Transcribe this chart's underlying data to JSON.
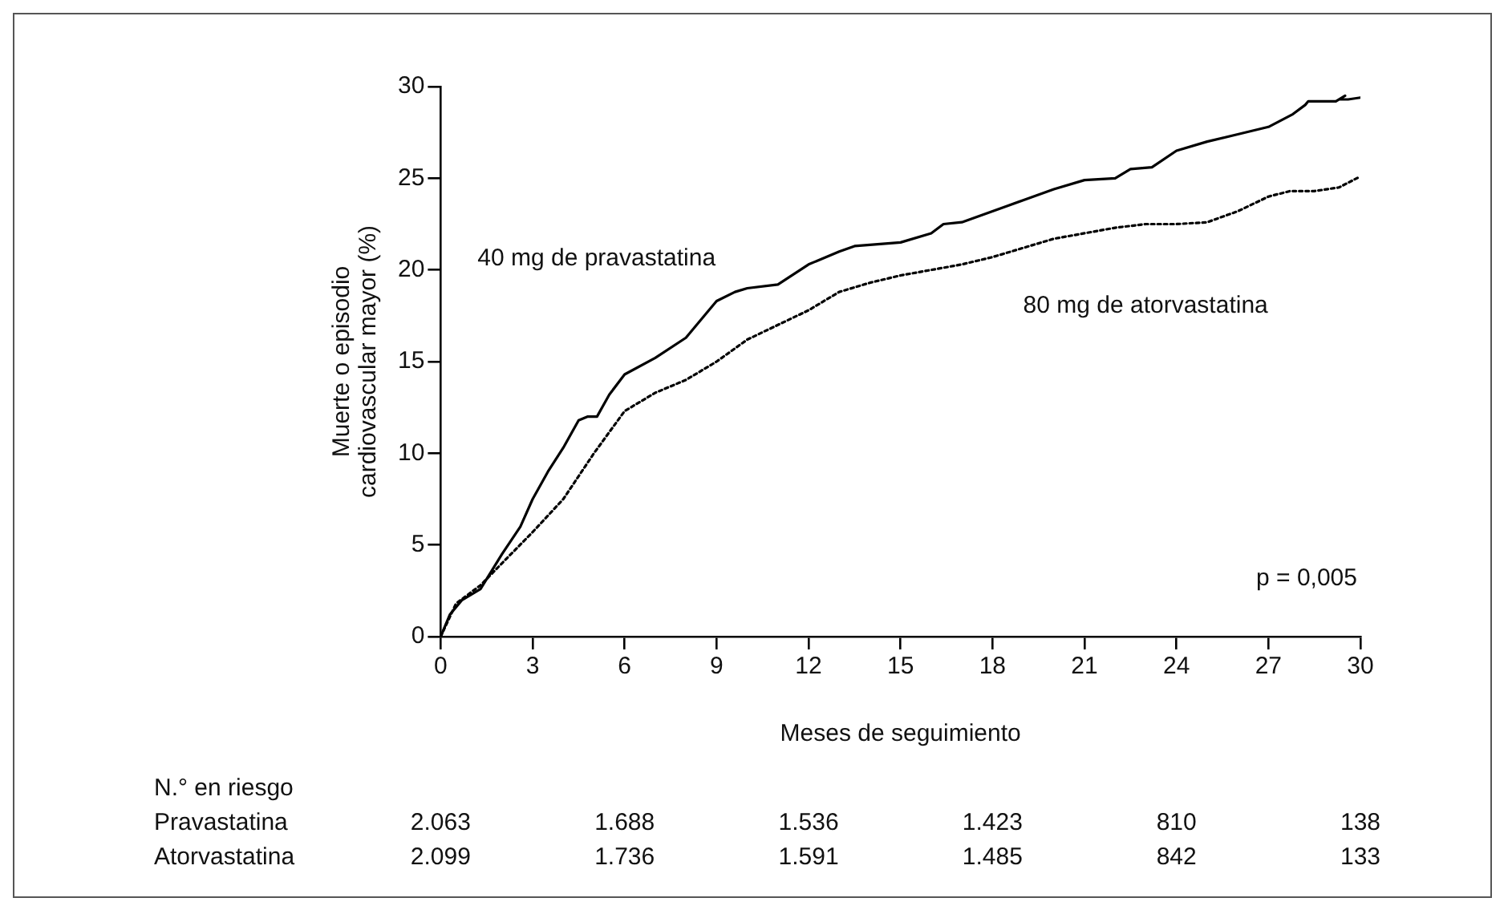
{
  "chart_data": {
    "type": "line",
    "xlabel": "Meses de seguimiento",
    "ylabel": "Muerte o episodio cardiovascular mayor (%)",
    "xlim": [
      0,
      30
    ],
    "xticks": [
      0,
      3,
      6,
      9,
      12,
      15,
      18,
      21,
      24,
      27,
      30
    ],
    "ylim": [
      0,
      30
    ],
    "yticks": [
      0,
      5,
      10,
      15,
      20,
      25,
      30
    ],
    "grid": false,
    "legend": false,
    "marker": "none",
    "series": [
      {
        "name": "40 mg de pravastatina",
        "color": "#000000",
        "line_style": "solid",
        "x": [
          0,
          0.3,
          0.7,
          1.3,
          2,
          2.6,
          3,
          3.5,
          4,
          4.5,
          4.8,
          5.1,
          5.5,
          6,
          7,
          8,
          8.6,
          9,
          9.6,
          10,
          11,
          12,
          13,
          13.5,
          15,
          16,
          16.4,
          17,
          18,
          19,
          20,
          21,
          22,
          22.5,
          23.2,
          24,
          25,
          26,
          27,
          27.8,
          28.2,
          28.3,
          29.2,
          29.5,
          29.3,
          29.6,
          30
        ],
        "values": [
          0,
          1.2,
          2,
          2.6,
          4.5,
          6,
          7.5,
          9,
          10.3,
          11.8,
          12,
          12,
          13.2,
          14.3,
          15.2,
          16.3,
          17.5,
          18.3,
          18.8,
          19,
          19.2,
          20.3,
          21,
          21.3,
          21.5,
          22,
          22.5,
          22.6,
          23.2,
          23.8,
          24.4,
          24.9,
          25,
          25.5,
          25.6,
          26.5,
          27,
          27.4,
          27.8,
          28.5,
          29,
          29.2,
          29.2,
          29.5,
          29.3,
          29.3,
          29.4
        ]
      },
      {
        "name": "80 mg de atorvastatina",
        "color": "#000000",
        "line_style": "dotted",
        "x": [
          0,
          0.5,
          1.3,
          2,
          3,
          4,
          5,
          6,
          7,
          8,
          9,
          10,
          11,
          12,
          13,
          14,
          15,
          16,
          17,
          18,
          19,
          20,
          21,
          22,
          23,
          24,
          25,
          26,
          27,
          27.7,
          28.5,
          29.3,
          30
        ],
        "values": [
          0,
          1.8,
          2.8,
          4,
          5.7,
          7.5,
          10,
          12.3,
          13.3,
          14,
          15,
          16.2,
          17,
          17.8,
          18.8,
          19.3,
          19.7,
          20,
          20.3,
          20.7,
          21.2,
          21.7,
          22,
          22.3,
          22.5,
          22.5,
          22.6,
          23.2,
          24,
          24.3,
          24.3,
          24.5,
          25.1
        ]
      }
    ],
    "annotations": [
      "p = 0,005",
      "N.° en riesgo",
      "Pravastatina",
      "2.063",
      "1.688",
      "1.536",
      "1.423",
      "810",
      "138",
      "Atorvastatina",
      "2.099",
      "1.736",
      "1.591",
      "1.485",
      "842",
      "133"
    ]
  }
}
